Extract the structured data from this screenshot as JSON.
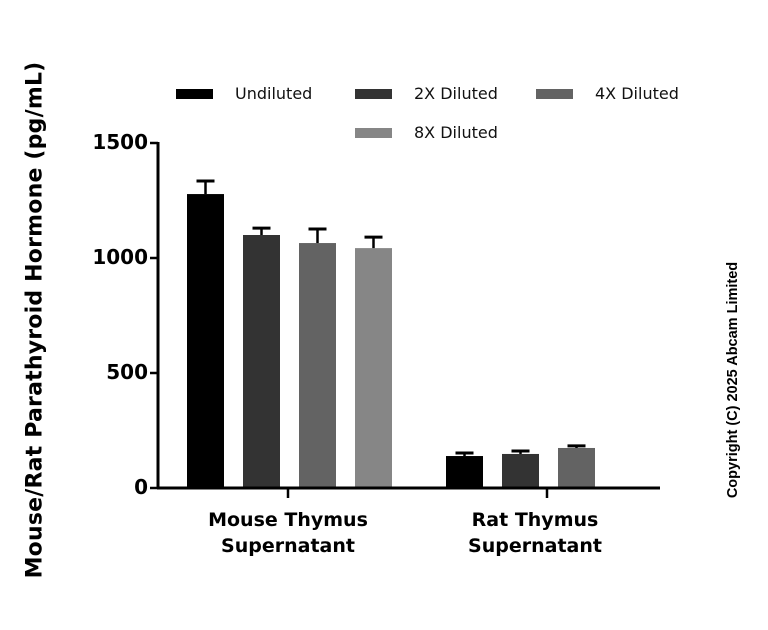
{
  "chart_data": {
    "type": "bar",
    "title": "",
    "xlabel": "",
    "ylabel": "Mouse/Rat Parathyroid Hormone (pg/mL)",
    "ylim": [
      0,
      1500
    ],
    "yticks": [
      0,
      500,
      1000,
      1500
    ],
    "grid": false,
    "legend_position": "top",
    "categories": [
      "Mouse Thymus Supernatant",
      "Rat Thymus Supernatant"
    ],
    "category_lines": [
      [
        "Mouse Thymus",
        "Supernatant"
      ],
      [
        "Rat Thymus",
        "Supernatant"
      ]
    ],
    "series": [
      {
        "name": "Undiluted",
        "color": "#000000",
        "values": [
          1278,
          139
        ],
        "error": [
          57,
          13
        ]
      },
      {
        "name": "2X Diluted",
        "color": "#333333",
        "values": [
          1100,
          148
        ],
        "error": [
          30,
          13
        ]
      },
      {
        "name": "4X Diluted",
        "color": "#636363",
        "values": [
          1065,
          174
        ],
        "error": [
          61,
          9
        ]
      },
      {
        "name": "8X Diluted",
        "color": "#868686",
        "values": [
          1043,
          null
        ],
        "error": [
          48,
          null
        ]
      }
    ]
  },
  "axis": {
    "ytick_labels": [
      "0",
      "500",
      "1000",
      "1500"
    ]
  },
  "legend": {
    "items": [
      {
        "label": "Undiluted",
        "color": "#000000"
      },
      {
        "label": "2X Diluted",
        "color": "#333333"
      },
      {
        "label": "4X Diluted",
        "color": "#636363"
      },
      {
        "label": "8X Diluted",
        "color": "#868686"
      }
    ]
  },
  "copyright": "Copyright (C) 2025 Abcam Limited"
}
